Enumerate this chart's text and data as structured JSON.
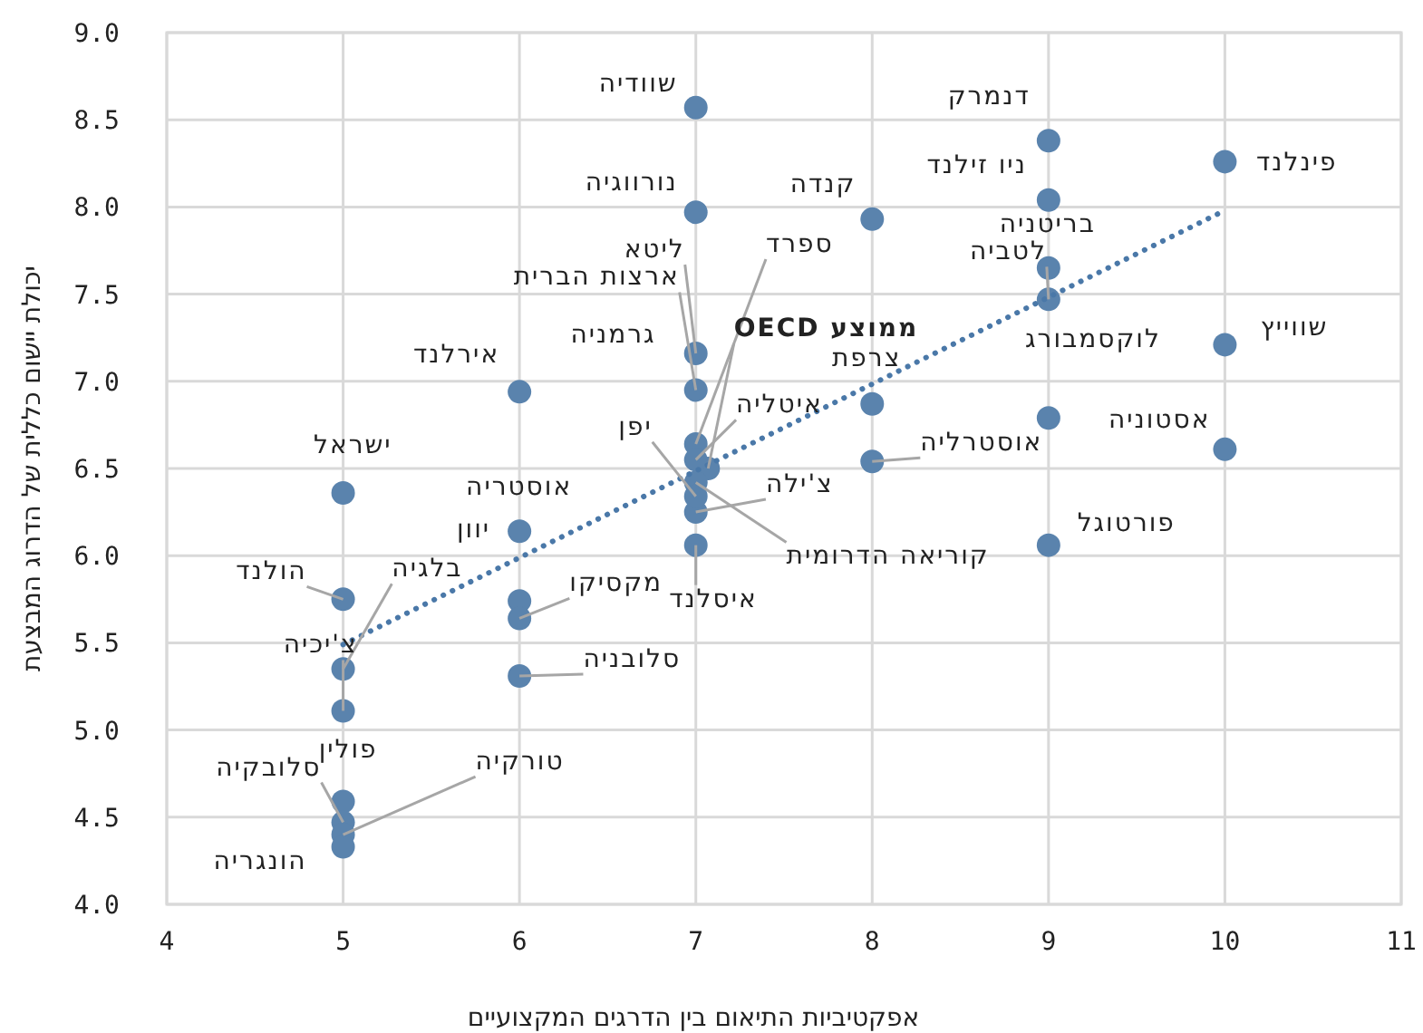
{
  "chart_data": {
    "type": "scatter",
    "xlabel": "אפקטיביות התיאום בין הדרגים המקצועיים",
    "ylabel": "יכולת יישום כללית של הדרוג המבצעת",
    "xlim": [
      4,
      11
    ],
    "xticks": [
      4,
      5,
      6,
      7,
      8,
      9,
      10,
      11
    ],
    "ylim": [
      4,
      9
    ],
    "yticks": [
      {
        "value": 4,
        "label": "4.0"
      },
      {
        "value": 4.5,
        "label": "4.5"
      },
      {
        "value": 5,
        "label": "5.0"
      },
      {
        "value": 5.5,
        "label": "5.5"
      },
      {
        "value": 6,
        "label": "6.0"
      },
      {
        "value": 6.5,
        "label": "6.5"
      },
      {
        "value": 7,
        "label": "7.0"
      },
      {
        "value": 7.5,
        "label": "7.5"
      },
      {
        "value": 8,
        "label": "8.0"
      },
      {
        "value": 8.5,
        "label": "8.5"
      },
      {
        "value": 9,
        "label": "9.0"
      }
    ],
    "grid": true,
    "series": [
      {
        "marker": "circle",
        "color": "#5a83ad",
        "x": [
          7,
          7,
          9,
          9,
          10,
          8,
          9,
          9,
          9,
          10,
          10,
          9,
          8,
          8,
          7,
          7.07,
          7,
          7,
          7,
          7,
          7,
          null,
          7,
          7,
          6,
          6,
          6,
          6,
          6,
          5,
          5,
          5,
          5,
          5,
          5,
          5,
          5
        ],
        "values": [
          8.57,
          7.97,
          8.38,
          8.04,
          8.26,
          7.93,
          7.65,
          7.47,
          6.79,
          7.21,
          6.61,
          6.06,
          6.87,
          6.54,
          6.64,
          6.5,
          6.55,
          6.42,
          6.25,
          6.34,
          6.06,
          null,
          7.16,
          6.95,
          6.94,
          6.14,
          5.74,
          5.64,
          5.31,
          6.36,
          5.75,
          5.35,
          5.11,
          4.59,
          4.47,
          4.4,
          4.33
        ]
      },
      {
        "type": "line",
        "marker": "none",
        "line_style": "dotted",
        "color": "#4a78a8",
        "x": [
          5,
          10
        ],
        "values": [
          5.49,
          7.98
        ]
      }
    ],
    "annotations": [
      {
        "text": "שוודיה",
        "x": 7,
        "y": 8.57
      },
      {
        "text": "נורווגיה",
        "x": 7,
        "y": 7.97
      },
      {
        "text": "דנמרק",
        "x": 9,
        "y": 8.38
      },
      {
        "text": "ניו זילנד",
        "x": 9,
        "y": 8.04
      },
      {
        "text": "פינלנד",
        "x": 10,
        "y": 8.26
      },
      {
        "text": "קנדה",
        "x": 8,
        "y": 7.93
      },
      {
        "text": "בריטניה",
        "x": 9,
        "y": 7.65
      },
      {
        "text": "לטביה",
        "x": 9,
        "y": 7.47
      },
      {
        "text": "לוקסמבורג",
        "x": 9,
        "y": 6.79
      },
      {
        "text": "שווייץ",
        "x": 10,
        "y": 7.21
      },
      {
        "text": "אסטוניה",
        "x": 10,
        "y": 6.61
      },
      {
        "text": "פורטוגל",
        "x": 9,
        "y": 6.06
      },
      {
        "text": "צרפת",
        "x": 8,
        "y": 6.87
      },
      {
        "text": "אוסטרליה",
        "x": 8,
        "y": 6.54
      },
      {
        "text": "ספרד",
        "x": 7,
        "y": 6.64
      },
      {
        "text": "ממוצע OECD",
        "x": 7.07,
        "y": 6.5
      },
      {
        "text": "איטליה",
        "x": 7,
        "y": 6.55
      },
      {
        "text": "קוריאה הדרומית",
        "x": 7,
        "y": 6.42
      },
      {
        "text": "צ'ילה",
        "x": 7,
        "y": 6.25
      },
      {
        "text": "יפן",
        "x": 7,
        "y": 6.34
      },
      {
        "text": "איסלנד",
        "x": 7,
        "y": 6.06
      },
      {
        "text": "גרמניה",
        "x": 7,
        "y": 7.16
      },
      {
        "text": "ליטא",
        "x": 7,
        "y": 7.16
      },
      {
        "text": "ארצות הברית",
        "x": 7,
        "y": 6.95
      },
      {
        "text": "אירלנד",
        "x": 6,
        "y": 6.94
      },
      {
        "text": "אוסטריה",
        "x": 6,
        "y": 6.14
      },
      {
        "text": "יוון",
        "x": 6,
        "y": 5.74
      },
      {
        "text": "מקסיקו",
        "x": 6,
        "y": 5.64
      },
      {
        "text": "סלובניה",
        "x": 6,
        "y": 5.31
      },
      {
        "text": "ישראל",
        "x": 5,
        "y": 6.36
      },
      {
        "text": "הולנד",
        "x": 5,
        "y": 5.75
      },
      {
        "text": "בלגיה",
        "x": 5,
        "y": 5.35
      },
      {
        "text": "צ'יכיה",
        "x": 5,
        "y": 5.11
      },
      {
        "text": "פולין",
        "x": 5,
        "y": 4.59
      },
      {
        "text": "סלובקיה",
        "x": 5,
        "y": 4.47
      },
      {
        "text": "טורקיה",
        "x": 5,
        "y": 4.4
      },
      {
        "text": "הונגריה",
        "x": 5,
        "y": 4.33
      }
    ]
  }
}
